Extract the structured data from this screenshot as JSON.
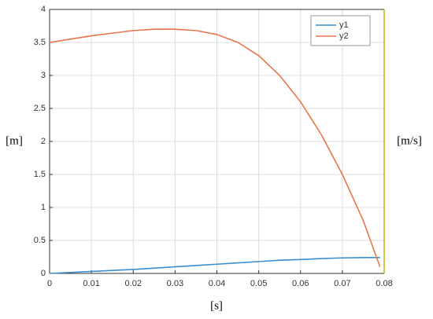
{
  "chart_data": {
    "type": "line",
    "ylabel": "[m]",
    "y2label": "[m/s]",
    "xlabel": "[s]",
    "x": [
      0,
      0.005,
      0.01,
      0.015,
      0.02,
      0.025,
      0.03,
      0.035,
      0.04,
      0.045,
      0.05,
      0.055,
      0.06,
      0.065,
      0.07,
      0.075,
      0.079
    ],
    "series": [
      {
        "name": "y1",
        "color": "#3a8fd0",
        "values": [
          0,
          0.015,
          0.03,
          0.045,
          0.06,
          0.08,
          0.1,
          0.12,
          0.14,
          0.16,
          0.18,
          0.2,
          0.21,
          0.225,
          0.235,
          0.24,
          0.24
        ]
      },
      {
        "name": "y2",
        "color": "#e8764a",
        "values": [
          3.5,
          3.55,
          3.6,
          3.64,
          3.68,
          3.7,
          3.7,
          3.68,
          3.62,
          3.5,
          3.3,
          3.0,
          2.6,
          2.1,
          1.5,
          0.8,
          0.1
        ]
      }
    ],
    "xlim": [
      0,
      0.08
    ],
    "xticks": [
      0,
      0.01,
      0.02,
      0.03,
      0.04,
      0.05,
      0.06,
      0.07,
      0.08
    ],
    "ylim": [
      0,
      4
    ],
    "yticks": [
      0,
      0.5,
      1,
      1.5,
      2,
      2.5,
      3,
      3.5,
      4
    ],
    "grid": true,
    "legend": "top-right"
  }
}
